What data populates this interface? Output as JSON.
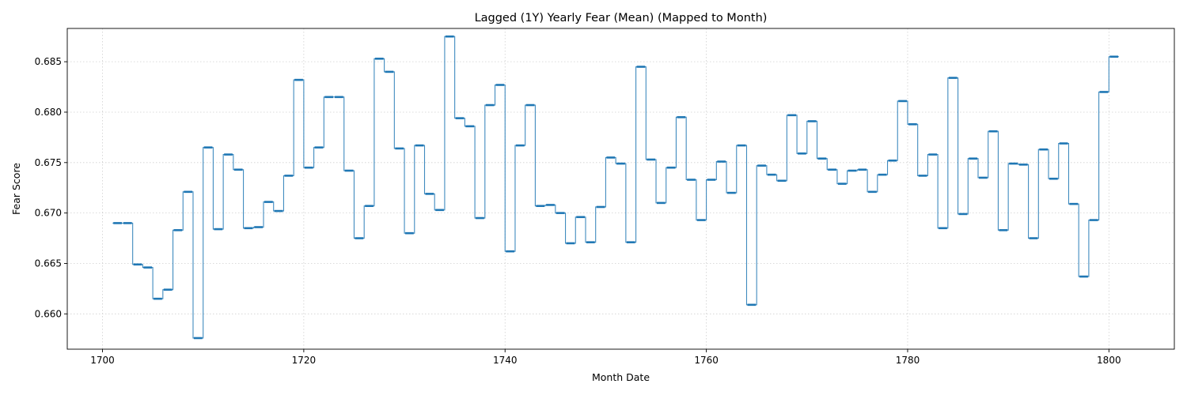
{
  "chart_data": {
    "type": "line",
    "title": "Lagged (1Y) Yearly Fear (Mean) (Mapped to Month)",
    "xlabel": "Month Date",
    "ylabel": "Fear Score",
    "xlim": [
      1696.5,
      1806.5
    ],
    "ylim": [
      0.6565,
      0.6883
    ],
    "xticks": [
      1700,
      1720,
      1740,
      1760,
      1780,
      1800
    ],
    "yticks": [
      0.66,
      0.665,
      0.67,
      0.675,
      0.68,
      0.685
    ],
    "ytick_labels": [
      "0.660",
      "0.665",
      "0.670",
      "0.675",
      "0.680",
      "0.685"
    ],
    "grid": true,
    "line_color": "#1f77b4",
    "step": "yearly",
    "series": [
      {
        "start_year": 1701,
        "end_year": 1801,
        "years": [
          1701,
          1702,
          1703,
          1704,
          1705,
          1706,
          1707,
          1708,
          1709,
          1710,
          1711,
          1712,
          1713,
          1714,
          1715,
          1716,
          1717,
          1718,
          1719,
          1720,
          1721,
          1722,
          1723,
          1724,
          1725,
          1726,
          1727,
          1728,
          1729,
          1730,
          1731,
          1732,
          1733,
          1734,
          1735,
          1736,
          1737,
          1738,
          1739,
          1740,
          1741,
          1742,
          1743,
          1744,
          1745,
          1746,
          1747,
          1748,
          1749,
          1750,
          1751,
          1752,
          1753,
          1754,
          1755,
          1756,
          1757,
          1758,
          1759,
          1760,
          1761,
          1762,
          1763,
          1764,
          1765,
          1766,
          1767,
          1768,
          1769,
          1770,
          1771,
          1772,
          1773,
          1774,
          1775,
          1776,
          1777,
          1778,
          1779,
          1780,
          1781,
          1782,
          1783,
          1784,
          1785,
          1786,
          1787,
          1788,
          1789,
          1790,
          1791,
          1792,
          1793,
          1794,
          1795,
          1796,
          1797,
          1798,
          1799,
          1800
        ],
        "values": [
          0.669,
          0.669,
          0.6649,
          0.6646,
          0.6615,
          0.6624,
          0.6683,
          0.6721,
          0.6576,
          0.6765,
          0.6684,
          0.6758,
          0.6743,
          0.6685,
          0.6686,
          0.6711,
          0.6702,
          0.6737,
          0.6832,
          0.6745,
          0.6765,
          0.6815,
          0.6815,
          0.6742,
          0.6675,
          0.6707,
          0.6853,
          0.684,
          0.6764,
          0.668,
          0.6767,
          0.6719,
          0.6703,
          0.6875,
          0.6794,
          0.6786,
          0.6695,
          0.6807,
          0.6827,
          0.6662,
          0.6767,
          0.6807,
          0.6707,
          0.6708,
          0.67,
          0.667,
          0.6696,
          0.6671,
          0.6706,
          0.6755,
          0.6749,
          0.6671,
          0.6845,
          0.6753,
          0.671,
          0.6745,
          0.6795,
          0.6733,
          0.6693,
          0.6733,
          0.6751,
          0.672,
          0.6767,
          0.6609,
          0.6747,
          0.6738,
          0.6732,
          0.6797,
          0.6759,
          0.6791,
          0.6754,
          0.6743,
          0.6729,
          0.6742,
          0.6743,
          0.6721,
          0.6738,
          0.6752,
          0.6811,
          0.6788,
          0.6737,
          0.6758,
          0.6685,
          0.6834,
          0.6699,
          0.6754,
          0.6735,
          0.6781,
          0.6683,
          0.6749,
          0.6748,
          0.6675,
          0.6763,
          0.6734,
          0.6769,
          0.6709,
          0.6637,
          0.6693,
          0.682,
          0.6855
        ]
      }
    ]
  }
}
